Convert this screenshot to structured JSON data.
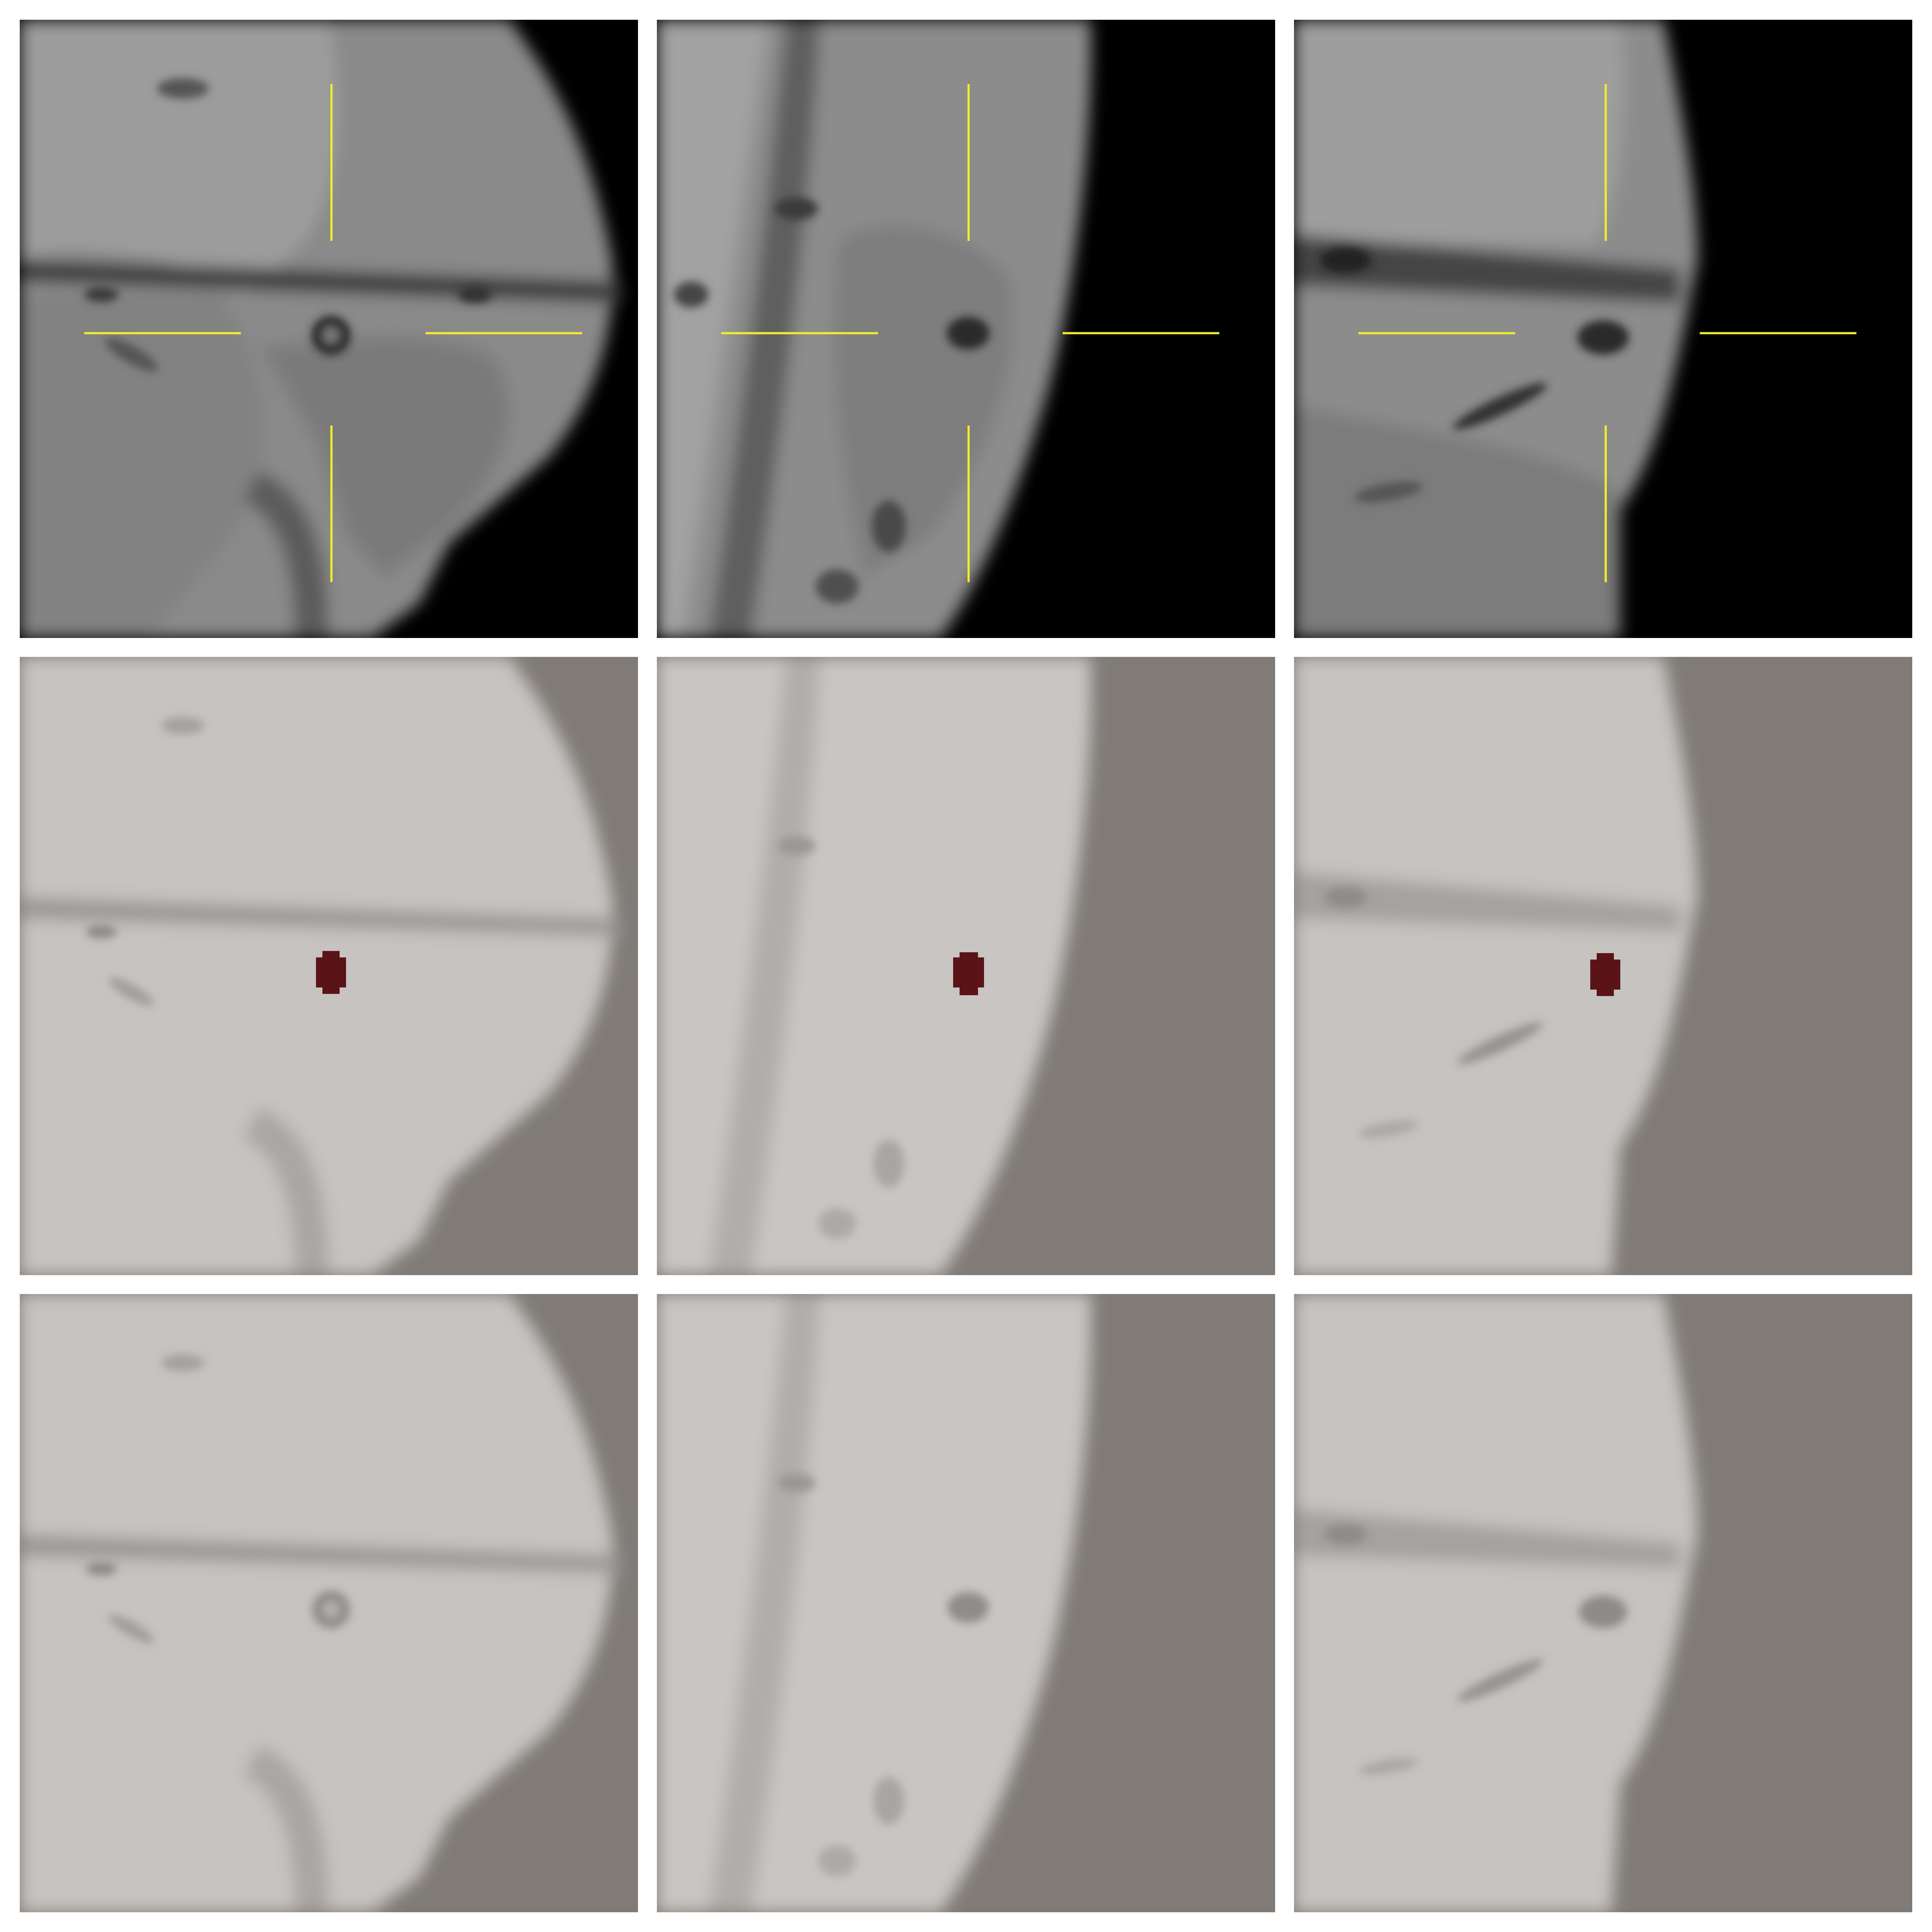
{
  "figure": {
    "rows": [
      "raw",
      "segmentation-overlay",
      "reference"
    ],
    "columns": [
      "axial",
      "coronal",
      "sagittal"
    ],
    "colors": {
      "background": "#ffffff",
      "crosshair": "#f2ee2a",
      "lesion": "#5a1418",
      "raw_backdrop": "#000000",
      "light_backdrop": "#807b77"
    }
  }
}
